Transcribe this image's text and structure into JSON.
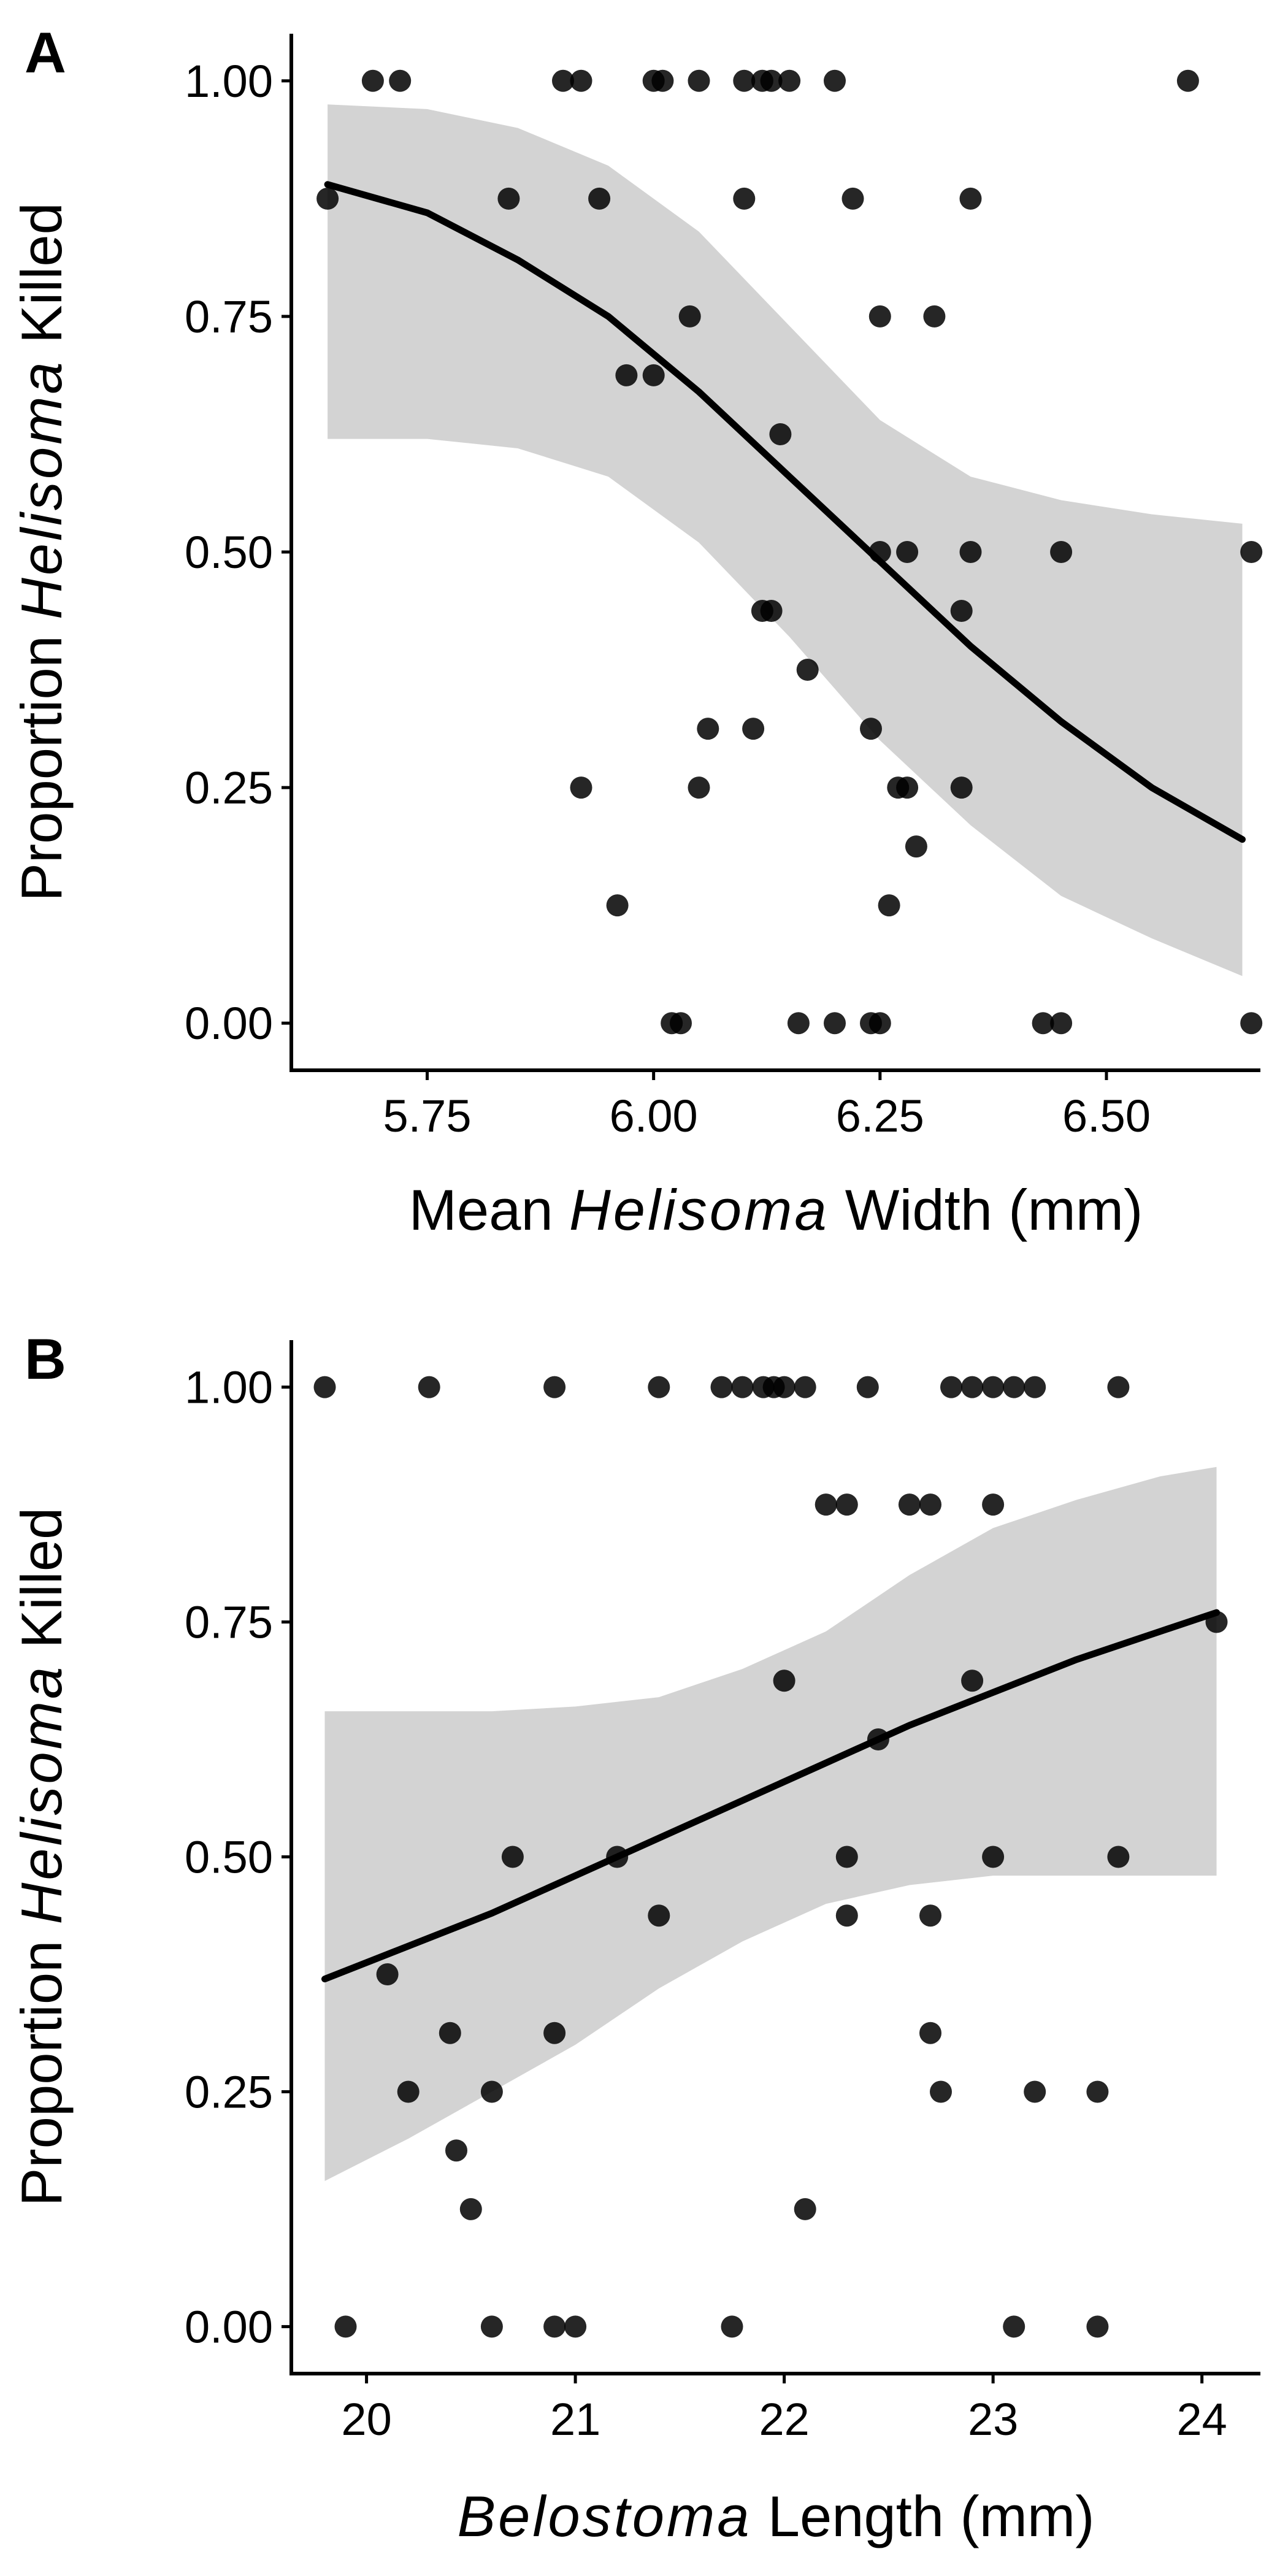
{
  "figure": {
    "background": "#ffffff"
  },
  "chart_data": [
    {
      "panel_label": "A",
      "type": "scatter",
      "xlabel_parts": [
        {
          "text": "Mean ",
          "italic": false
        },
        {
          "text": "Helisoma",
          "italic": true
        },
        {
          "text": " Width (mm)",
          "italic": false
        }
      ],
      "ylabel_parts": [
        {
          "text": "Proportion ",
          "italic": false
        },
        {
          "text": "Helisoma",
          "italic": true
        },
        {
          "text": " Killed",
          "italic": false
        }
      ],
      "xlim": [
        5.6,
        6.67
      ],
      "ylim": [
        -0.05,
        1.05
      ],
      "xticks": [
        5.75,
        6.0,
        6.25,
        6.5
      ],
      "xtick_labels": [
        "5.75",
        "6.00",
        "6.25",
        "6.50"
      ],
      "yticks": [
        0.0,
        0.25,
        0.5,
        0.75,
        1.0
      ],
      "ytick_labels": [
        "0.00",
        "0.25",
        "0.50",
        "0.75",
        "1.00"
      ],
      "grid": false,
      "point_color": "#000000",
      "line_color": "#000000",
      "band_color": "#d3d3d3",
      "points": [
        [
          5.64,
          0.875
        ],
        [
          5.69,
          1.0
        ],
        [
          5.72,
          1.0
        ],
        [
          5.84,
          0.875
        ],
        [
          5.9,
          1.0
        ],
        [
          5.92,
          1.0
        ],
        [
          5.92,
          0.25
        ],
        [
          5.94,
          0.875
        ],
        [
          5.96,
          0.125
        ],
        [
          5.97,
          0.6875
        ],
        [
          6.0,
          0.6875
        ],
        [
          6.0,
          1.0
        ],
        [
          6.01,
          1.0
        ],
        [
          6.02,
          0.0
        ],
        [
          6.03,
          0.0
        ],
        [
          6.04,
          0.75
        ],
        [
          6.05,
          1.0
        ],
        [
          6.05,
          0.25
        ],
        [
          6.06,
          0.3125
        ],
        [
          6.1,
          1.0
        ],
        [
          6.1,
          0.875
        ],
        [
          6.11,
          0.3125
        ],
        [
          6.12,
          0.4375
        ],
        [
          6.12,
          1.0
        ],
        [
          6.13,
          0.4375
        ],
        [
          6.13,
          1.0
        ],
        [
          6.14,
          0.625
        ],
        [
          6.15,
          1.0
        ],
        [
          6.16,
          0.0
        ],
        [
          6.17,
          0.375
        ],
        [
          6.2,
          1.0
        ],
        [
          6.2,
          0.0
        ],
        [
          6.22,
          0.875
        ],
        [
          6.24,
          0.3125
        ],
        [
          6.24,
          0.0
        ],
        [
          6.25,
          0.0
        ],
        [
          6.25,
          0.5
        ],
        [
          6.25,
          0.75
        ],
        [
          6.26,
          0.125
        ],
        [
          6.27,
          0.25
        ],
        [
          6.28,
          0.25
        ],
        [
          6.28,
          0.5
        ],
        [
          6.29,
          0.1875
        ],
        [
          6.31,
          0.75
        ],
        [
          6.34,
          0.4375
        ],
        [
          6.34,
          0.25
        ],
        [
          6.35,
          0.875
        ],
        [
          6.35,
          0.5
        ],
        [
          6.43,
          0.0
        ],
        [
          6.45,
          0.5
        ],
        [
          6.45,
          0.0
        ],
        [
          6.59,
          1.0
        ],
        [
          6.66,
          0.5
        ],
        [
          6.66,
          0.0
        ]
      ],
      "fit": {
        "x": [
          5.64,
          5.75,
          5.85,
          5.95,
          6.05,
          6.15,
          6.25,
          6.35,
          6.45,
          6.55,
          6.65
        ],
        "y": [
          0.89,
          0.86,
          0.81,
          0.75,
          0.67,
          0.58,
          0.49,
          0.4,
          0.32,
          0.25,
          0.195
        ],
        "lower": [
          0.62,
          0.62,
          0.61,
          0.58,
          0.51,
          0.41,
          0.3,
          0.21,
          0.135,
          0.09,
          0.05
        ],
        "upper": [
          0.975,
          0.97,
          0.95,
          0.91,
          0.84,
          0.74,
          0.64,
          0.58,
          0.555,
          0.54,
          0.53
        ]
      }
    },
    {
      "panel_label": "B",
      "type": "scatter",
      "xlabel_parts": [
        {
          "text": "Belostoma",
          "italic": true
        },
        {
          "text": " Length (mm)",
          "italic": false
        }
      ],
      "ylabel_parts": [
        {
          "text": "Proportion ",
          "italic": false
        },
        {
          "text": "Helisoma",
          "italic": true
        },
        {
          "text": " Killed",
          "italic": false
        }
      ],
      "xlim": [
        19.64,
        24.28
      ],
      "ylim": [
        -0.05,
        1.05
      ],
      "xticks": [
        20,
        21,
        22,
        23,
        24
      ],
      "xtick_labels": [
        "20",
        "21",
        "22",
        "23",
        "24"
      ],
      "yticks": [
        0.0,
        0.25,
        0.5,
        0.75,
        1.0
      ],
      "ytick_labels": [
        "0.00",
        "0.25",
        "0.50",
        "0.75",
        "1.00"
      ],
      "grid": false,
      "point_color": "#000000",
      "line_color": "#000000",
      "band_color": "#d3d3d3",
      "points": [
        [
          19.8,
          1.0
        ],
        [
          19.9,
          0.0
        ],
        [
          20.1,
          0.375
        ],
        [
          20.2,
          0.25
        ],
        [
          20.3,
          1.0
        ],
        [
          20.4,
          0.3125
        ],
        [
          20.43,
          0.1875
        ],
        [
          20.5,
          0.125
        ],
        [
          20.6,
          0.25
        ],
        [
          20.6,
          0.0
        ],
        [
          20.7,
          0.5
        ],
        [
          20.9,
          0.0
        ],
        [
          20.9,
          0.3125
        ],
        [
          20.9,
          1.0
        ],
        [
          21.0,
          0.0
        ],
        [
          21.2,
          0.5
        ],
        [
          21.4,
          0.4375
        ],
        [
          21.4,
          1.0
        ],
        [
          21.7,
          1.0
        ],
        [
          21.75,
          0.0
        ],
        [
          21.8,
          1.0
        ],
        [
          21.9,
          1.0
        ],
        [
          21.95,
          1.0
        ],
        [
          22.0,
          0.6875
        ],
        [
          22.0,
          1.0
        ],
        [
          22.1,
          1.0
        ],
        [
          22.1,
          0.125
        ],
        [
          22.2,
          0.875
        ],
        [
          22.3,
          0.875
        ],
        [
          22.3,
          0.5
        ],
        [
          22.3,
          0.4375
        ],
        [
          22.4,
          1.0
        ],
        [
          22.45,
          0.625
        ],
        [
          22.6,
          0.875
        ],
        [
          22.7,
          0.875
        ],
        [
          22.7,
          0.4375
        ],
        [
          22.7,
          0.3125
        ],
        [
          22.75,
          0.25
        ],
        [
          22.8,
          1.0
        ],
        [
          22.9,
          0.6875
        ],
        [
          22.9,
          1.0
        ],
        [
          23.0,
          0.875
        ],
        [
          23.0,
          0.5
        ],
        [
          23.0,
          1.0
        ],
        [
          23.1,
          1.0
        ],
        [
          23.1,
          0.0
        ],
        [
          23.2,
          1.0
        ],
        [
          23.2,
          0.25
        ],
        [
          23.5,
          0.25
        ],
        [
          23.5,
          0.0
        ],
        [
          23.6,
          0.5
        ],
        [
          23.6,
          1.0
        ],
        [
          24.07,
          0.75
        ]
      ],
      "fit": {
        "x": [
          19.8,
          20.2,
          20.6,
          21.0,
          21.4,
          21.8,
          22.2,
          22.6,
          23.0,
          23.4,
          23.8,
          24.07
        ],
        "y": [
          0.37,
          0.405,
          0.44,
          0.48,
          0.52,
          0.56,
          0.6,
          0.64,
          0.675,
          0.71,
          0.74,
          0.76
        ],
        "lower": [
          0.155,
          0.2,
          0.25,
          0.3,
          0.36,
          0.41,
          0.45,
          0.47,
          0.48,
          0.48,
          0.48,
          0.48
        ],
        "upper": [
          0.655,
          0.655,
          0.655,
          0.66,
          0.67,
          0.7,
          0.74,
          0.8,
          0.85,
          0.88,
          0.905,
          0.915
        ]
      }
    }
  ]
}
